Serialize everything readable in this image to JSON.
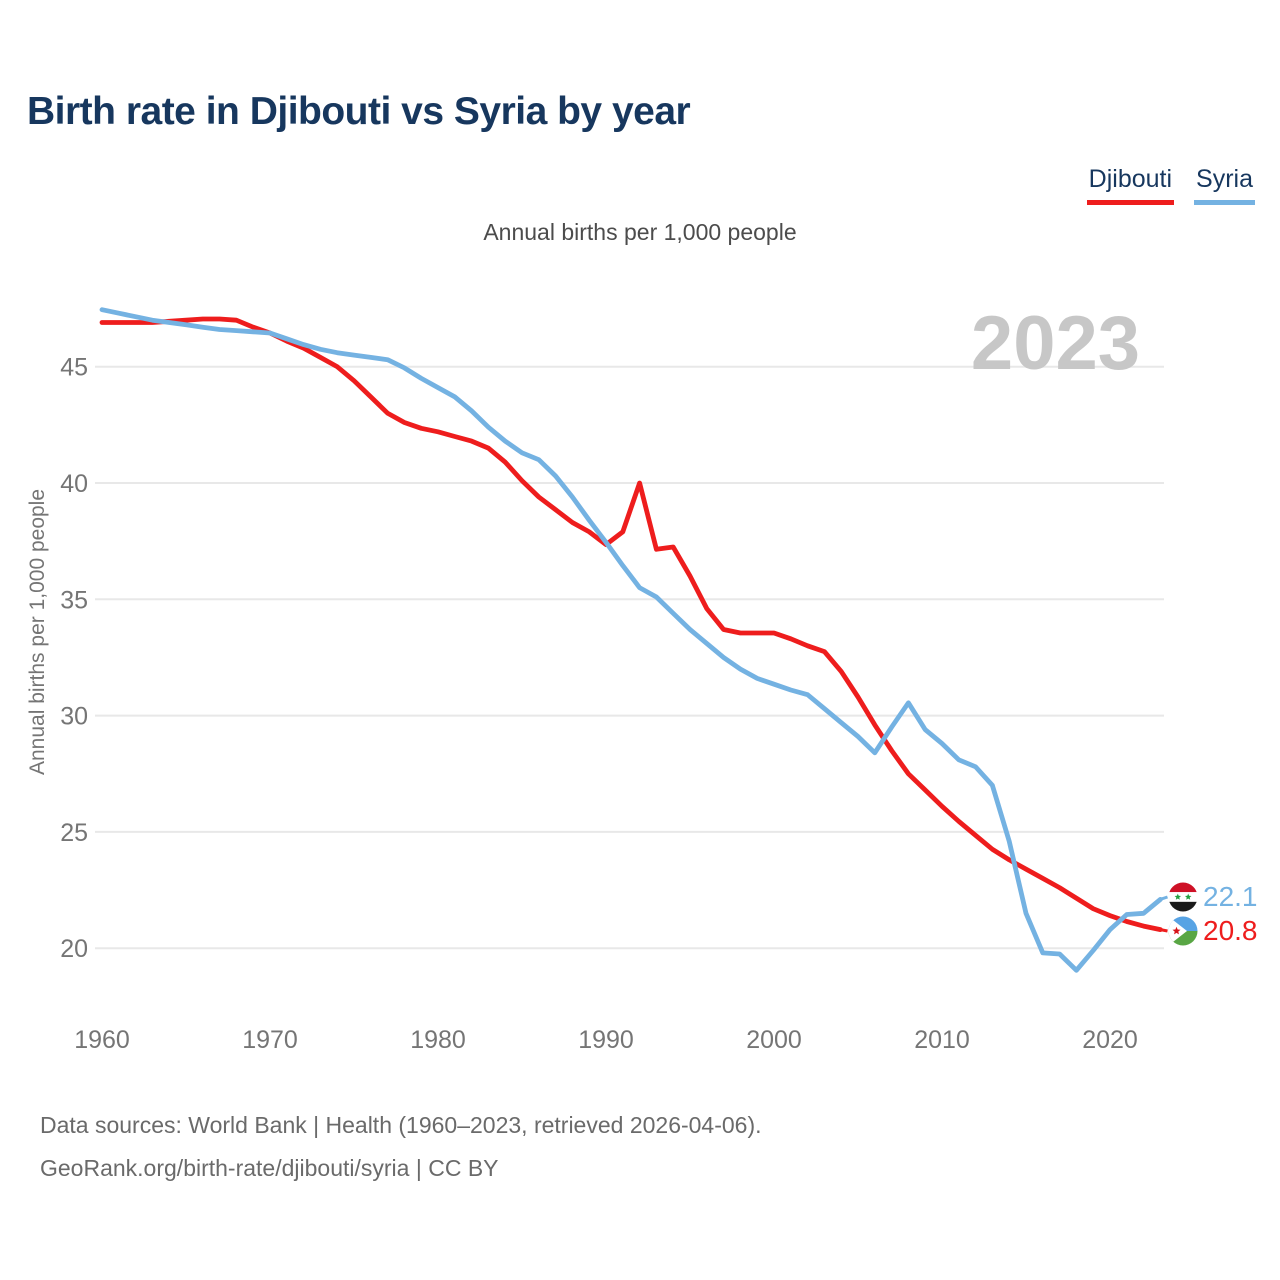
{
  "header": {
    "title": "Birth rate in Djibouti vs Syria by year"
  },
  "legend": [
    {
      "label": "Djibouti",
      "color": "#ee1d1d"
    },
    {
      "label": "Syria",
      "color": "#74b2e2"
    }
  ],
  "subtitle": "Annual births per 1,000 people",
  "watermark": "2023",
  "footer": {
    "line1": "Data sources: World Bank | Health (1960–2023, retrieved 2026-04-06).",
    "line2": "GeoRank.org/birth-rate/djibouti/syria | CC BY"
  },
  "end_labels": [
    {
      "series": "Syria",
      "value": "22.1",
      "color": "#74b2e2",
      "flag": "syria-flag"
    },
    {
      "series": "Djibouti",
      "value": "20.8",
      "color": "#ee1d1d",
      "flag": "djibouti-flag"
    }
  ],
  "flag_colors": {
    "syria": {
      "top": "#ce1126",
      "middle": "#ffffff",
      "bottom": "#1a1a1a",
      "stars": "#239f40"
    },
    "djibouti": {
      "top": "#57a3e4",
      "bottom": "#59a644",
      "triangle": "#ffffff",
      "star": "#d7141a"
    }
  },
  "chart_data": {
    "type": "line",
    "title": "Birth rate in Djibouti vs Syria by year",
    "subtitle": "Annual births per 1,000 people",
    "ylabel": "Annual births per 1,000 people",
    "xlabel": "",
    "ylim": [
      18.5,
      48.5
    ],
    "xlim": [
      1960,
      2023
    ],
    "y_ticks": [
      45,
      40,
      35,
      30,
      25,
      20
    ],
    "x_ticks": [
      1960,
      1970,
      1980,
      1990,
      2000,
      2010,
      2020
    ],
    "grid": "horizontal",
    "legend_position": "top-right",
    "x": [
      1960,
      1961,
      1962,
      1963,
      1964,
      1965,
      1966,
      1967,
      1968,
      1969,
      1970,
      1971,
      1972,
      1973,
      1974,
      1975,
      1976,
      1977,
      1978,
      1979,
      1980,
      1981,
      1982,
      1983,
      1984,
      1985,
      1986,
      1987,
      1988,
      1989,
      1990,
      1991,
      1992,
      1993,
      1994,
      1995,
      1996,
      1997,
      1998,
      1999,
      2000,
      2001,
      2002,
      2003,
      2004,
      2005,
      2006,
      2007,
      2008,
      2009,
      2010,
      2011,
      2012,
      2013,
      2014,
      2015,
      2016,
      2017,
      2018,
      2019,
      2020,
      2021,
      2022,
      2023
    ],
    "series": [
      {
        "name": "Djibouti",
        "color": "#ee1d1d",
        "end_value": 20.8,
        "values": [
          46.9,
          46.9,
          46.9,
          46.9,
          46.95,
          47.0,
          47.05,
          47.05,
          47.0,
          46.7,
          46.45,
          46.1,
          45.8,
          45.4,
          45.0,
          44.4,
          43.7,
          43.0,
          42.6,
          42.35,
          42.2,
          42.0,
          41.8,
          41.5,
          40.9,
          40.1,
          39.4,
          38.85,
          38.3,
          37.9,
          37.35,
          37.9,
          40.0,
          37.15,
          37.25,
          36.0,
          34.6,
          33.7,
          33.55,
          33.55,
          33.55,
          33.3,
          33.0,
          32.75,
          31.9,
          30.8,
          29.6,
          28.5,
          27.5,
          26.8,
          26.1,
          25.45,
          24.85,
          24.25,
          23.8,
          23.4,
          23.0,
          22.6,
          22.15,
          21.7,
          21.4,
          21.15,
          20.95,
          20.8
        ]
      },
      {
        "name": "Syria",
        "color": "#74b2e2",
        "end_value": 22.1,
        "values": [
          47.45,
          47.3,
          47.15,
          47.0,
          46.9,
          46.8,
          46.7,
          46.6,
          46.55,
          46.5,
          46.45,
          46.2,
          45.95,
          45.75,
          45.6,
          45.5,
          45.4,
          45.3,
          44.95,
          44.5,
          44.1,
          43.7,
          43.1,
          42.4,
          41.8,
          41.3,
          41.0,
          40.3,
          39.4,
          38.4,
          37.45,
          36.45,
          35.5,
          35.1,
          34.4,
          33.7,
          33.1,
          32.5,
          32.0,
          31.6,
          31.35,
          31.1,
          30.9,
          30.3,
          29.7,
          29.1,
          28.4,
          29.5,
          30.55,
          29.4,
          28.8,
          28.1,
          27.8,
          27.0,
          24.6,
          21.5,
          19.8,
          19.75,
          19.05,
          19.9,
          20.8,
          21.45,
          21.5,
          22.1
        ]
      }
    ]
  }
}
